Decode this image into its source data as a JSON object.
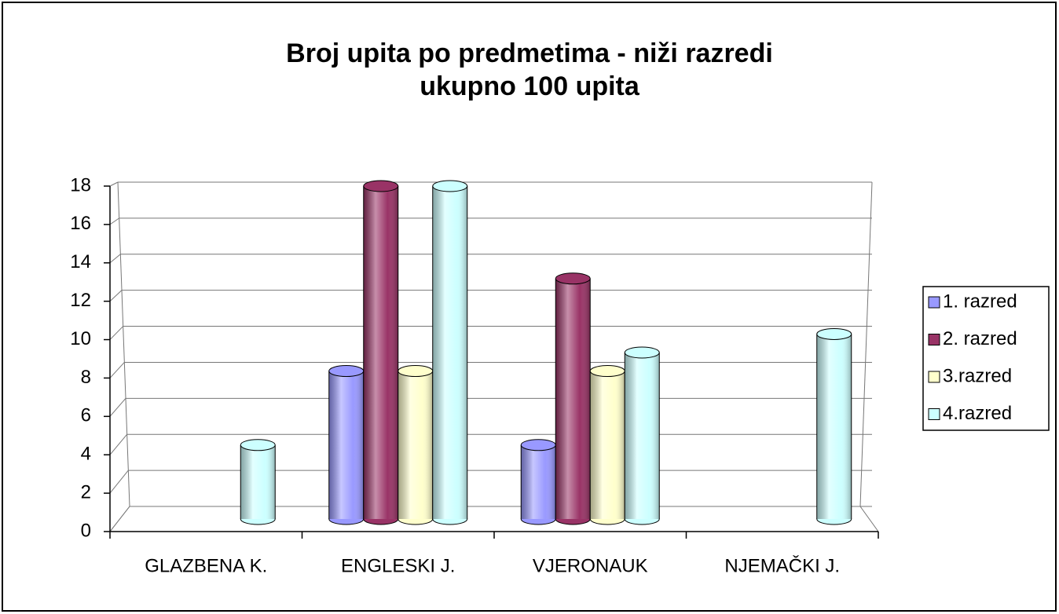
{
  "chart_data": {
    "type": "bar3d",
    "title": [
      "Broj upita po predmetima - niži razredi",
      "ukupno 100 upita"
    ],
    "categories": [
      "GLAZBENA K.",
      "ENGLESKI J.",
      "VJERONAUK",
      "NJEMAČKI J."
    ],
    "series": [
      {
        "name": "1. razred",
        "color": "#9999ff",
        "values": [
          0,
          8,
          4,
          0
        ]
      },
      {
        "name": "2. razred",
        "color": "#993366",
        "values": [
          0,
          18,
          13,
          0
        ]
      },
      {
        "name": "3.razred",
        "color": "#ffffcc",
        "values": [
          0,
          8,
          8,
          0
        ]
      },
      {
        "name": "4.razred",
        "color": "#ccffff",
        "values": [
          4,
          18,
          9,
          10
        ]
      }
    ],
    "ylim": [
      0,
      18
    ],
    "yticks": [
      0,
      2,
      4,
      6,
      8,
      10,
      12,
      14,
      16,
      18
    ],
    "grid": true,
    "legend": "right"
  }
}
